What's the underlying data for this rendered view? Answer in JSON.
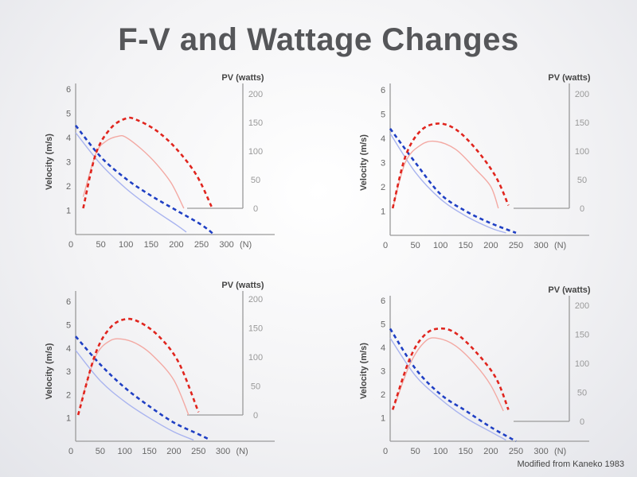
{
  "slide": {
    "title": "F-V and Wattage Changes",
    "credit": "Modified from Kaneko 1983"
  },
  "colors": {
    "velocity_solid": "#a9b4ef",
    "velocity_dashed": "#1f3fc4",
    "power_solid": "#f3a9a3",
    "power_dashed": "#e0251e",
    "axis": "#9a9a9a"
  },
  "chart_data": [
    {
      "type": "line",
      "xlabel": "(N)",
      "ylabel": "Velocity (m/s)",
      "y2label": "PV (watts)",
      "xticks": [
        "0",
        "50",
        "100",
        "150",
        "200",
        "250",
        "300"
      ],
      "yticks": [
        "1",
        "2",
        "3",
        "4",
        "5",
        "6"
      ],
      "y2ticks": [
        "0",
        "50",
        "100",
        "150",
        "200"
      ],
      "xlim": [
        0,
        300
      ],
      "ylim": [
        0,
        6
      ],
      "y2lim": [
        0,
        200
      ],
      "series": [
        {
          "axis": "left",
          "style": "solid",
          "x": [
            0,
            50,
            100,
            150,
            200,
            220
          ],
          "y": [
            4.2,
            2.9,
            1.9,
            1.1,
            0.4,
            0.1
          ]
        },
        {
          "axis": "left",
          "style": "dashed",
          "x": [
            0,
            50,
            100,
            150,
            200,
            250,
            275
          ],
          "y": [
            4.5,
            3.2,
            2.3,
            1.6,
            1.0,
            0.4,
            0.0
          ]
        },
        {
          "axis": "right",
          "style": "solid",
          "x": [
            15,
            40,
            60,
            85,
            100,
            130,
            160,
            190,
            215
          ],
          "y": [
            20,
            95,
            117,
            126,
            124,
            104,
            78,
            44,
            0
          ]
        },
        {
          "axis": "right",
          "style": "dashed",
          "x": [
            15,
            40,
            70,
            100,
            120,
            160,
            200,
            240,
            270
          ],
          "y": [
            0,
            95,
            140,
            157,
            155,
            136,
            104,
            58,
            3
          ]
        }
      ]
    },
    {
      "type": "line",
      "xlabel": "(N)",
      "ylabel": "Velocity (m/s)",
      "y2label": "PV (watts)",
      "xticks": [
        "0",
        "50",
        "100",
        "150",
        "200",
        "250",
        "300"
      ],
      "yticks": [
        "1",
        "2",
        "3",
        "4",
        "5",
        "6"
      ],
      "y2ticks": [
        "0",
        "50",
        "100",
        "150",
        "200"
      ],
      "xlim": [
        0,
        300
      ],
      "ylim": [
        0,
        6
      ],
      "y2lim": [
        0,
        200
      ],
      "series": [
        {
          "axis": "left",
          "style": "solid",
          "x": [
            0,
            50,
            100,
            150,
            200,
            230
          ],
          "y": [
            4.2,
            2.6,
            1.5,
            0.8,
            0.3,
            0.1
          ]
        },
        {
          "axis": "left",
          "style": "dashed",
          "x": [
            0,
            50,
            100,
            150,
            200,
            250
          ],
          "y": [
            4.4,
            3.0,
            1.7,
            1.0,
            0.5,
            0.1
          ]
        },
        {
          "axis": "right",
          "style": "solid",
          "x": [
            5,
            30,
            60,
            90,
            130,
            170,
            200,
            215
          ],
          "y": [
            0,
            80,
            110,
            117,
            103,
            68,
            38,
            0
          ]
        },
        {
          "axis": "right",
          "style": "dashed",
          "x": [
            5,
            30,
            60,
            95,
            130,
            170,
            210,
            235
          ],
          "y": [
            0,
            90,
            135,
            148,
            138,
            104,
            55,
            5
          ]
        }
      ]
    },
    {
      "type": "line",
      "xlabel": "(N)",
      "ylabel": "Velocity (m/s)",
      "y2label": "PV (watts)",
      "xticks": [
        "0",
        "50",
        "100",
        "150",
        "200",
        "250",
        "300"
      ],
      "yticks": [
        "1",
        "2",
        "3",
        "4",
        "5",
        "6"
      ],
      "y2ticks": [
        "0",
        "50",
        "100",
        "150",
        "200"
      ],
      "xlim": [
        0,
        300
      ],
      "ylim": [
        0,
        6
      ],
      "y2lim": [
        0,
        200
      ],
      "series": [
        {
          "axis": "left",
          "style": "solid",
          "x": [
            0,
            50,
            100,
            150,
            200,
            240
          ],
          "y": [
            3.9,
            2.6,
            1.7,
            1.0,
            0.4,
            0.05
          ]
        },
        {
          "axis": "left",
          "style": "dashed",
          "x": [
            0,
            50,
            100,
            150,
            200,
            250,
            270
          ],
          "y": [
            4.5,
            3.3,
            2.3,
            1.5,
            0.8,
            0.3,
            0.1
          ]
        },
        {
          "axis": "right",
          "style": "solid",
          "x": [
            10,
            40,
            70,
            100,
            130,
            160,
            200,
            230
          ],
          "y": [
            20,
            100,
            128,
            130,
            120,
            100,
            60,
            0
          ]
        },
        {
          "axis": "right",
          "style": "dashed",
          "x": [
            5,
            40,
            70,
            100,
            130,
            170,
            210,
            250
          ],
          "y": [
            0,
            105,
            150,
            165,
            160,
            135,
            90,
            5
          ]
        }
      ]
    },
    {
      "type": "line",
      "xlabel": "(N)",
      "ylabel": "Velocity (m/s)",
      "y2label": "PV (watts)",
      "xticks": [
        "0",
        "50",
        "100",
        "150",
        "200",
        "250",
        "300"
      ],
      "yticks": [
        "1",
        "2",
        "3",
        "4",
        "5",
        "6"
      ],
      "y2ticks": [
        "0",
        "50",
        "100",
        "150",
        "200"
      ],
      "xlim": [
        0,
        300
      ],
      "ylim": [
        0,
        6
      ],
      "y2lim": [
        0,
        200
      ],
      "series": [
        {
          "axis": "left",
          "style": "solid",
          "x": [
            0,
            50,
            100,
            150,
            200,
            230
          ],
          "y": [
            4.4,
            2.8,
            1.8,
            1.0,
            0.4,
            0.05
          ]
        },
        {
          "axis": "left",
          "style": "dashed",
          "x": [
            0,
            50,
            100,
            150,
            200,
            250
          ],
          "y": [
            4.8,
            3.1,
            2.0,
            1.3,
            0.6,
            0.0
          ]
        },
        {
          "axis": "right",
          "style": "solid",
          "x": [
            10,
            40,
            70,
            95,
            130,
            170,
            200,
            225
          ],
          "y": [
            30,
            100,
            138,
            143,
            130,
            97,
            62,
            18
          ]
        },
        {
          "axis": "right",
          "style": "dashed",
          "x": [
            5,
            40,
            70,
            100,
            130,
            170,
            210,
            235
          ],
          "y": [
            20,
            110,
            150,
            160,
            152,
            120,
            75,
            20
          ]
        }
      ]
    }
  ]
}
